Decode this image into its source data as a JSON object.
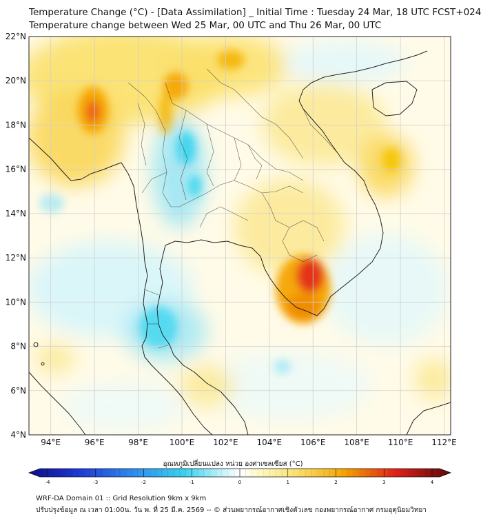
{
  "header": {
    "title_line1": "Temperature Change (°C) - [Data Assimilation] _ Initial Time : Tuesday 24 Mar, 18 UTC FCST+024",
    "title_line2": "Temperature change between Wed 25 Mar, 00 UTC and Thu 26 Mar, 00 UTC"
  },
  "map": {
    "lat_labels": [
      "22°N",
      "20°N",
      "18°N",
      "16°N",
      "14°N",
      "12°N",
      "10°N",
      "8°N",
      "6°N",
      "4°N"
    ],
    "lon_labels": [
      "94°E",
      "96°E",
      "98°E",
      "100°E",
      "102°E",
      "104°E",
      "106°E",
      "108°E",
      "110°E",
      "112°E"
    ],
    "lat_range": [
      4,
      22
    ],
    "lon_range": [
      93,
      112.3
    ],
    "warm_spots": [
      {
        "lon": 96.0,
        "lat": 18.7,
        "delta": 2.7
      },
      {
        "lon": 99.6,
        "lat": 19.9,
        "delta": 2.2
      },
      {
        "lon": 102.3,
        "lat": 21.1,
        "delta": 2.2
      },
      {
        "lon": 106.1,
        "lat": 11.2,
        "delta": 3.0
      },
      {
        "lon": 110.5,
        "lat": 16.0,
        "delta": 1.6
      }
    ],
    "cool_spots": [
      {
        "lon": 99.8,
        "lat": 16.5,
        "delta": -1.4
      },
      {
        "lon": 98.6,
        "lat": 8.4,
        "delta": -1.2
      },
      {
        "lon": 96.0,
        "lat": 10.0,
        "delta": -0.6
      }
    ]
  },
  "colorbar": {
    "title": "อุณหภูมิเปลี่ยนแปลง หน่วย องศาเซลเซียส (°C)",
    "min": -4,
    "max": 4,
    "ticks": [
      "-4",
      "-3",
      "-2",
      "-1",
      "0",
      "1",
      "2",
      "3",
      "4"
    ]
  },
  "footer": {
    "line1": "WRF-DA Domain 01 :: Grid Resolution 9km x 9km",
    "line2": "ปรับปรุงข้อมูล ณ เวลา 01:00น. วัน พ. ที่ 25 มี.ค. 2569 -- © ส่วนพยากรณ์อากาศเชิงตัวเลข กองพยากรณ์อากาศ กรมอุตุนิยมวิทยา"
  },
  "colors": {
    "coastline": "#222222",
    "grid": "#cfcfcf",
    "warm": "#f5c300",
    "hot": "#e0201a",
    "cool": "#39d4ef"
  }
}
